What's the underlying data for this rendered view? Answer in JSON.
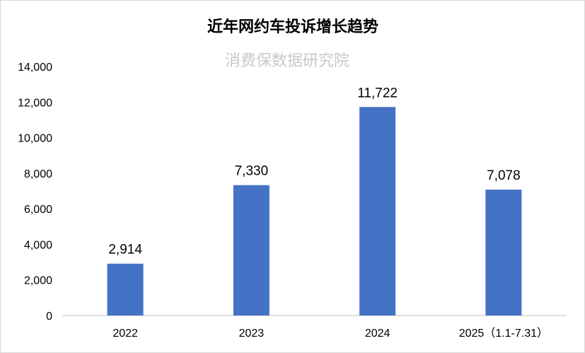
{
  "chart_data": {
    "type": "bar",
    "title": "近年网约车投诉增长趋势",
    "watermark": "消费保数据研究院",
    "categories": [
      "2022",
      "2023",
      "2024",
      "2025（1.1-7.31）"
    ],
    "values": [
      2914,
      7330,
      11722,
      7078
    ],
    "data_labels": [
      "2,914",
      "7,330",
      "11,722",
      "7,078"
    ],
    "xlabel": "",
    "ylabel": "",
    "ylim": [
      0,
      14000
    ],
    "yticks": [
      0,
      2000,
      4000,
      6000,
      8000,
      10000,
      12000,
      14000
    ],
    "ytick_labels": [
      "0",
      "2,000",
      "4,000",
      "6,000",
      "8,000",
      "10,000",
      "12,000",
      "14,000"
    ],
    "grid": false,
    "legend": "none",
    "bar_color": "#4472C4",
    "axis_color": "#bfbfbf"
  }
}
